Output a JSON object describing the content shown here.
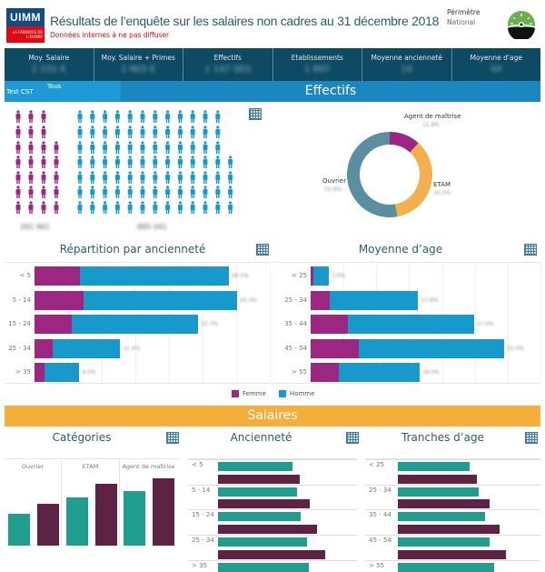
{
  "header": {
    "logo_text": "UIMM",
    "logo_sub": "LA FABRIQUE DE L'AVENIR",
    "title": "Résultats de l’enquête sur les salaires non cadres au 31 décembre 2018",
    "subtitle": "Données internes à ne pas diffuser",
    "perimetre_label": "Périmètre",
    "perimetre_value": "National",
    "gauge_icon": "gauge-icon"
  },
  "kpis": [
    {
      "label": "Moy. Salaire",
      "value": "2 231 €"
    },
    {
      "label": "Moy. Salaire + Primes",
      "value": "2 603 €"
    },
    {
      "label": "Effectifs",
      "value": "1 147 003"
    },
    {
      "label": "Etablissements",
      "value": "1 897"
    },
    {
      "label": "Moyenne ancienneté",
      "value": "14"
    },
    {
      "label": "Moyenne d'age",
      "value": "44"
    }
  ],
  "filter": {
    "label": "Test CST",
    "value": "Tous"
  },
  "sections": {
    "effectifs": "Effectifs",
    "salaires": "Salaires"
  },
  "colors": {
    "femme": "#9c2780",
    "homme": "#1899cc",
    "ouvrier": "#5a8fa0",
    "etam": "#f4b04e",
    "agent": "#9c2780",
    "teal": "#1f9e8f",
    "plum": "#5e2244"
  },
  "people": {
    "femme_total": "261 961",
    "homme_total": "885 041",
    "femme_icons": 26,
    "homme_icons": 88
  },
  "legend": {
    "femme": "Femme",
    "homme": "Homme"
  },
  "chart_data": [
    {
      "type": "pie",
      "donut": true,
      "categories": [
        "Agent de maîtrise",
        "ETAM",
        "Ouvrier"
      ],
      "values": [
        11.8,
        35.3,
        52.9
      ],
      "labels": [
        "11.8%",
        "35.3%",
        "52.9%"
      ]
    },
    {
      "type": "bar",
      "orientation": "horizontal",
      "stacked": true,
      "title": "Répartition par ancienneté",
      "categories": [
        "< 5",
        "5 - 14",
        "15 - 24",
        "25 - 34",
        "> 35"
      ],
      "series": [
        {
          "name": "Femme",
          "values": [
            6.6,
            7.1,
            5.4,
            2.6,
            1.4
          ]
        },
        {
          "name": "Homme",
          "values": [
            21.5,
            22.2,
            18.3,
            9.8,
            5.1
          ]
        }
      ],
      "totals": [
        "28.1%",
        "29.3%",
        "23.7%",
        "12.4%",
        "6.5%"
      ]
    },
    {
      "type": "bar",
      "orientation": "horizontal",
      "stacked": true,
      "title": "Moyenne d’age",
      "categories": [
        "< 25",
        "25 - 34",
        "35 - 44",
        "45 - 54",
        "> 55"
      ],
      "series": [
        {
          "name": "Femme",
          "values": [
            0.5,
            3.2,
            6.2,
            8.0,
            4.7
          ]
        },
        {
          "name": "Homme",
          "values": [
            2.5,
            14.6,
            20.8,
            24.0,
            13.3
          ]
        }
      ],
      "totals": [
        "3.0%",
        "17.8%",
        "27.0%",
        "32.0%",
        "18.0%"
      ]
    },
    {
      "type": "bar",
      "title": "Catégories",
      "categories": [
        "Ouvrier",
        "ETAM",
        "Agent de maîtrise"
      ],
      "series": [
        {
          "values": [
            25,
            43,
            50
          ]
        },
        {
          "values": [
            36,
            58,
            64
          ]
        }
      ]
    },
    {
      "type": "bar",
      "orientation": "horizontal",
      "title": "Ancienneté",
      "categories": [
        "< 5",
        "5 - 14",
        "15 - 24",
        "25 - 34",
        "> 35"
      ],
      "series": [
        {
          "values": [
            82,
            87,
            91,
            98,
            100
          ]
        },
        {
          "values": [
            90,
            101,
            109,
            118,
            null
          ]
        }
      ]
    },
    {
      "type": "bar",
      "orientation": "horizontal",
      "title": "Tranches d’age",
      "categories": [
        "< 25",
        "25 - 34",
        "35 - 44",
        "45 - 54",
        "> 55"
      ],
      "series": [
        {
          "values": [
            79,
            89,
            96,
            101,
            106
          ]
        },
        {
          "values": [
            87,
            101,
            112,
            119,
            null
          ]
        }
      ]
    }
  ]
}
